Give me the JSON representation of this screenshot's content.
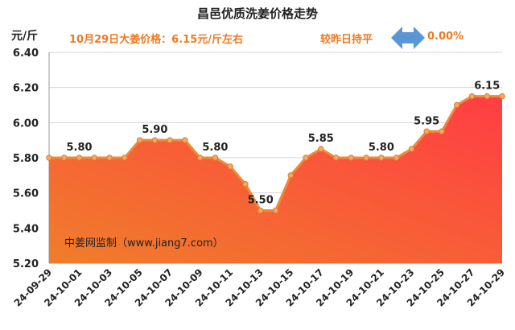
{
  "header": {
    "title": "昌邑优质洗姜价格走势",
    "unit": "元/斤",
    "price_note": "10月29日大姜价格：6.15元/斤左右",
    "compare_label": "较昨日持平",
    "change_pct": "0.00%"
  },
  "watermark": "中姜网监制（www.jiang7.com）",
  "colors": {
    "line": "#ec8a3a",
    "fill_top": "#ff3d44",
    "fill_bottom": "#f07d2a",
    "accent_text": "#ee7a22",
    "arrow": "#5a96d4"
  },
  "chart_data": {
    "type": "area",
    "ylim": [
      5.2,
      6.4
    ],
    "yticks": [
      "5.20",
      "5.40",
      "5.60",
      "5.80",
      "6.00",
      "6.20",
      "6.40"
    ],
    "grid": true,
    "x": [
      "24-09-29",
      "24-09-30",
      "24-10-01",
      "24-10-02",
      "24-10-03",
      "24-10-04",
      "24-10-05",
      "24-10-06",
      "24-10-07",
      "24-10-08",
      "24-10-09",
      "24-10-10",
      "24-10-11",
      "24-10-12",
      "24-10-13",
      "24-10-14",
      "24-10-15",
      "24-10-16",
      "24-10-17",
      "24-10-18",
      "24-10-19",
      "24-10-20",
      "24-10-21",
      "24-10-22",
      "24-10-23",
      "24-10-24",
      "24-10-25",
      "24-10-26",
      "24-10-27",
      "24-10-28",
      "24-10-29"
    ],
    "values": [
      5.8,
      5.8,
      5.8,
      5.8,
      5.8,
      5.8,
      5.9,
      5.9,
      5.9,
      5.9,
      5.8,
      5.8,
      5.75,
      5.65,
      5.5,
      5.5,
      5.7,
      5.8,
      5.85,
      5.8,
      5.8,
      5.8,
      5.8,
      5.8,
      5.85,
      5.95,
      5.95,
      6.1,
      6.15,
      6.15,
      6.15
    ],
    "xtick_labels": [
      "24-09-29",
      "24-10-01",
      "24-10-03",
      "24-10-05",
      "24-10-07",
      "24-10-09",
      "24-10-11",
      "24-10-13",
      "24-10-15",
      "24-10-17",
      "24-10-19",
      "24-10-21",
      "24-10-23",
      "24-10-25",
      "24-10-27",
      "24-10-29"
    ],
    "annotations": [
      {
        "index": 2,
        "label": "5.80"
      },
      {
        "index": 7,
        "label": "5.90"
      },
      {
        "index": 11,
        "label": "5.80"
      },
      {
        "index": 14,
        "label": "5.50"
      },
      {
        "index": 18,
        "label": "5.85"
      },
      {
        "index": 22,
        "label": "5.80"
      },
      {
        "index": 25,
        "label": "5.95"
      },
      {
        "index": 29,
        "label": "6.15"
      }
    ]
  }
}
